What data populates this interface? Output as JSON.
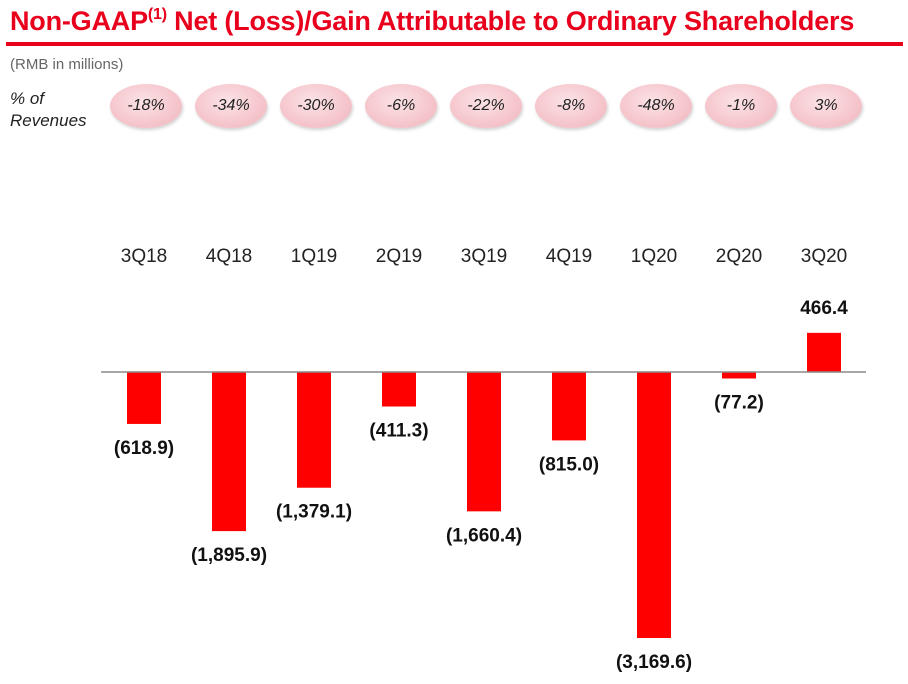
{
  "header": {
    "title_main": "Non-GAAP",
    "title_sup": "(1)",
    "title_rest": " Net (Loss)/Gain Attributable to Ordinary Shareholders",
    "units": "(RMB in millions)"
  },
  "pct_row": {
    "label_line1": "% of",
    "label_line2": "Revenues",
    "values": [
      "-18%",
      "-34%",
      "-30%",
      "-6%",
      "-22%",
      "-8%",
      "-48%",
      "-1%",
      "3%"
    ]
  },
  "colors": {
    "title": "#e8001c",
    "bar": "#ff0000",
    "pill": "#f4c1c8"
  },
  "chart_data": {
    "type": "bar",
    "title": "Non-GAAP(1) Net (Loss)/Gain Attributable to Ordinary Shareholders",
    "ylabel": "(RMB in millions)",
    "categories": [
      "3Q18",
      "4Q18",
      "1Q19",
      "2Q19",
      "3Q19",
      "4Q19",
      "1Q20",
      "2Q20",
      "3Q20"
    ],
    "values": [
      -618.9,
      -1895.9,
      -1379.1,
      -411.3,
      -1660.4,
      -815.0,
      -3169.6,
      -77.2,
      466.4
    ],
    "value_labels": [
      "(618.9)",
      "(1,895.9)",
      "(1,379.1)",
      "(411.3)",
      "(1,660.4)",
      "(815.0)",
      "(3,169.6)",
      "(77.2)",
      "466.4"
    ],
    "ylim": [
      -3169.6,
      466.4
    ],
    "grid": false,
    "legend": "none"
  }
}
